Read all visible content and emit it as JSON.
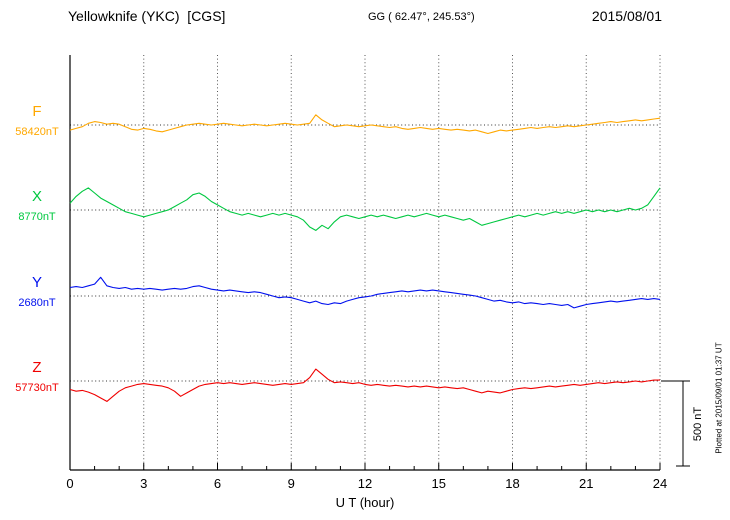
{
  "header": {
    "station_title": "Yellowknife (YKC)  [CGS]",
    "gg_coords": "GG ( 62.47°, 245.53°)",
    "date": "2015/08/01"
  },
  "footer_note": "Plotted at 2015/09/01 01:37 UT",
  "axis": {
    "xlabel": "U T (hour)",
    "xmin": 0,
    "xmax": 24,
    "ticks": [
      0,
      3,
      6,
      9,
      12,
      15,
      18,
      21,
      24
    ]
  },
  "scale_bar": {
    "label": "500 nT",
    "nT": 500
  },
  "chart_data": {
    "type": "line",
    "title": "Yellowknife (YKC) [CGS] magnetogram 2015/08/01",
    "xlabel": "U T (hour)",
    "x_ticks": [
      0,
      3,
      6,
      9,
      12,
      15,
      18,
      21,
      24
    ],
    "x_start_hour": 0,
    "x_step_hour": 0.25,
    "x_range_hours": [
      0,
      24
    ],
    "scale_nT_per_div": 500,
    "grid": "dotted-vertical-every-3h-and-dotted-baselines",
    "series": [
      {
        "name": "F",
        "baseline_label": "58420nT",
        "baseline_nT": 58420,
        "color": "#FFA800",
        "deviations_nT": [
          -30,
          -20,
          -10,
          10,
          20,
          15,
          5,
          10,
          5,
          -10,
          -25,
          -30,
          -20,
          -25,
          -35,
          -40,
          -30,
          -20,
          -10,
          0,
          5,
          10,
          5,
          0,
          5,
          10,
          5,
          0,
          -5,
          0,
          5,
          0,
          -5,
          0,
          5,
          10,
          5,
          0,
          5,
          10,
          60,
          30,
          10,
          -10,
          -5,
          0,
          -5,
          -10,
          -5,
          0,
          -5,
          -10,
          -15,
          -10,
          -20,
          -25,
          -20,
          -15,
          -20,
          -25,
          -20,
          -25,
          -30,
          -25,
          -30,
          -35,
          -30,
          -40,
          -50,
          -40,
          -30,
          -35,
          -30,
          -25,
          -20,
          -15,
          -20,
          -15,
          -10,
          -15,
          -10,
          -5,
          -10,
          -5,
          0,
          5,
          10,
          15,
          20,
          15,
          20,
          25,
          30,
          25,
          30,
          35,
          40
        ]
      },
      {
        "name": "X",
        "baseline_label": "8770nT",
        "baseline_nT": 8770,
        "color": "#00C840",
        "deviations_nT": [
          40,
          80,
          110,
          130,
          100,
          70,
          50,
          30,
          10,
          -10,
          -20,
          -30,
          -40,
          -30,
          -20,
          -10,
          0,
          20,
          40,
          60,
          90,
          100,
          80,
          50,
          30,
          10,
          -10,
          -20,
          -30,
          -20,
          -30,
          -40,
          -30,
          -20,
          -30,
          -20,
          -30,
          -40,
          -60,
          -100,
          -120,
          -90,
          -110,
          -70,
          -40,
          -30,
          -40,
          -50,
          -40,
          -30,
          -40,
          -30,
          -40,
          -50,
          -40,
          -30,
          -40,
          -30,
          -20,
          -30,
          -40,
          -30,
          -40,
          -50,
          -60,
          -50,
          -70,
          -90,
          -80,
          -70,
          -60,
          -50,
          -40,
          -30,
          -40,
          -30,
          -20,
          -30,
          -20,
          -10,
          -20,
          -10,
          -20,
          -10,
          0,
          -10,
          0,
          -10,
          0,
          -10,
          0,
          10,
          0,
          10,
          30,
          80,
          130
        ]
      },
      {
        "name": "Y",
        "baseline_label": "2680nT",
        "baseline_nT": 2680,
        "color": "#0010EE",
        "deviations_nT": [
          50,
          55,
          50,
          60,
          70,
          110,
          60,
          50,
          45,
          50,
          40,
          45,
          40,
          45,
          40,
          35,
          40,
          45,
          40,
          45,
          55,
          60,
          50,
          40,
          35,
          30,
          35,
          30,
          25,
          20,
          25,
          20,
          10,
          0,
          -10,
          -5,
          -10,
          -20,
          -30,
          -40,
          -30,
          -45,
          -50,
          -40,
          -45,
          -30,
          -20,
          -10,
          -5,
          0,
          10,
          15,
          20,
          25,
          30,
          25,
          30,
          35,
          30,
          35,
          30,
          25,
          20,
          15,
          10,
          5,
          0,
          -10,
          -20,
          -30,
          -25,
          -35,
          -40,
          -35,
          -45,
          -40,
          -45,
          -50,
          -45,
          -50,
          -55,
          -50,
          -70,
          -60,
          -50,
          -45,
          -40,
          -35,
          -30,
          -35,
          -30,
          -25,
          -20,
          -15,
          -20,
          -15,
          -20
        ]
      },
      {
        "name": "Z",
        "baseline_label": "57730nT",
        "baseline_nT": 57730,
        "color": "#F00000",
        "deviations_nT": [
          -50,
          -60,
          -55,
          -65,
          -80,
          -100,
          -120,
          -90,
          -60,
          -40,
          -30,
          -20,
          -15,
          -20,
          -25,
          -30,
          -40,
          -60,
          -90,
          -70,
          -50,
          -30,
          -20,
          -15,
          -10,
          -15,
          -10,
          -15,
          -20,
          -15,
          -10,
          -15,
          -20,
          -25,
          -20,
          -15,
          -20,
          -15,
          -10,
          20,
          70,
          40,
          10,
          -10,
          -5,
          -10,
          -15,
          -10,
          -20,
          -25,
          -20,
          -25,
          -30,
          -25,
          -30,
          -35,
          -30,
          -35,
          -30,
          -35,
          -40,
          -35,
          -40,
          -45,
          -40,
          -50,
          -60,
          -70,
          -60,
          -65,
          -70,
          -60,
          -50,
          -45,
          -40,
          -45,
          -40,
          -35,
          -30,
          -35,
          -30,
          -25,
          -20,
          -25,
          -20,
          -15,
          -10,
          -15,
          -10,
          -5,
          -10,
          -5,
          0,
          -5,
          0,
          5,
          5
        ]
      }
    ]
  }
}
